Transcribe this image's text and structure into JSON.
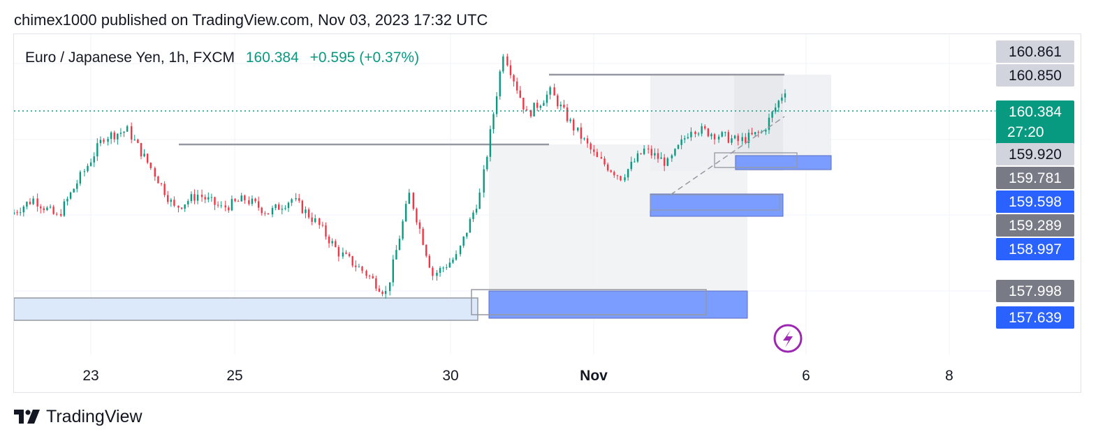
{
  "header": {
    "published": "chimex1000 published on TradingView.com, Nov 03, 2023 17:32 UTC"
  },
  "legend": {
    "symbol": "Euro / Japanese Yen, 1h, FXCM",
    "price": "160.384",
    "change": "+0.595 (+0.37%)"
  },
  "footer": {
    "brand": "TradingView"
  },
  "colors": {
    "up": "#089981",
    "down": "#f23645",
    "zone": "#2962ff",
    "zone_fill": "#7b9dff",
    "grey_label": "#d1d4dc",
    "dark_label": "#787b86",
    "current": "#089981"
  },
  "chart_data": {
    "type": "candlestick",
    "title": "Euro / Japanese Yen, 1h, FXCM",
    "x_tick_labels": [
      "23",
      "25",
      "30",
      "Nov",
      "6",
      "8"
    ],
    "ylim": [
      157.4,
      161.0
    ],
    "grid": true,
    "current_price": 160.384,
    "countdown": "27:20",
    "price_labels": [
      {
        "value": "160.861",
        "style": "grey"
      },
      {
        "value": "160.850",
        "style": "grey"
      },
      {
        "value": "160.384",
        "style": "current",
        "sub": "27:20"
      },
      {
        "value": "159.920",
        "style": "grey"
      },
      {
        "value": "159.781",
        "style": "dark"
      },
      {
        "value": "159.598",
        "style": "blue"
      },
      {
        "value": "159.289",
        "style": "dark"
      },
      {
        "value": "158.997",
        "style": "blue"
      },
      {
        "value": "157.998",
        "style": "dark"
      },
      {
        "value": "157.639",
        "style": "blue"
      }
    ],
    "path_points": [
      {
        "x": "Oct 20",
        "y": 158.98
      },
      {
        "x": "Oct 23",
        "y": 159.15
      },
      {
        "x": "Oct 23b",
        "y": 158.95
      },
      {
        "x": "Oct 24",
        "y": 159.4
      },
      {
        "x": "Oct 24b",
        "y": 159.85
      },
      {
        "x": "Oct 25",
        "y": 159.92
      },
      {
        "x": "Oct 25b",
        "y": 159.5
      },
      {
        "x": "Oct 26",
        "y": 159.05
      },
      {
        "x": "Oct 26b",
        "y": 159.2
      },
      {
        "x": "Oct 27",
        "y": 159.05
      },
      {
        "x": "Oct 27b",
        "y": 159.15
      },
      {
        "x": "Oct 28",
        "y": 159.0
      },
      {
        "x": "Oct 29",
        "y": 159.15
      },
      {
        "x": "Oct 29b",
        "y": 158.9
      },
      {
        "x": "Oct 30",
        "y": 158.55
      },
      {
        "x": "Oct 30b",
        "y": 158.35
      },
      {
        "x": "Oct 31",
        "y": 158.1
      },
      {
        "x": "Oct 31b",
        "y": 159.2
      },
      {
        "x": "Oct 31c",
        "y": 158.3
      },
      {
        "x": "Oct 31d",
        "y": 158.5
      },
      {
        "x": "Nov 1",
        "y": 159.2
      },
      {
        "x": "Nov 1b",
        "y": 160.8
      },
      {
        "x": "Nov 1c",
        "y": 160.1
      },
      {
        "x": "Nov 1d",
        "y": 160.35
      },
      {
        "x": "Nov 2",
        "y": 159.95
      },
      {
        "x": "Nov 2b",
        "y": 159.6
      },
      {
        "x": "Nov 2c",
        "y": 159.4
      },
      {
        "x": "Nov 2d",
        "y": 159.7
      },
      {
        "x": "Nov 3",
        "y": 159.55
      },
      {
        "x": "Nov 3b",
        "y": 159.95
      },
      {
        "x": "Nov 3c",
        "y": 159.88
      },
      {
        "x": "Nov 3d",
        "y": 159.8
      },
      {
        "x": "Nov 4",
        "y": 159.9
      },
      {
        "x": "Nov 4b",
        "y": 160.384
      }
    ]
  }
}
